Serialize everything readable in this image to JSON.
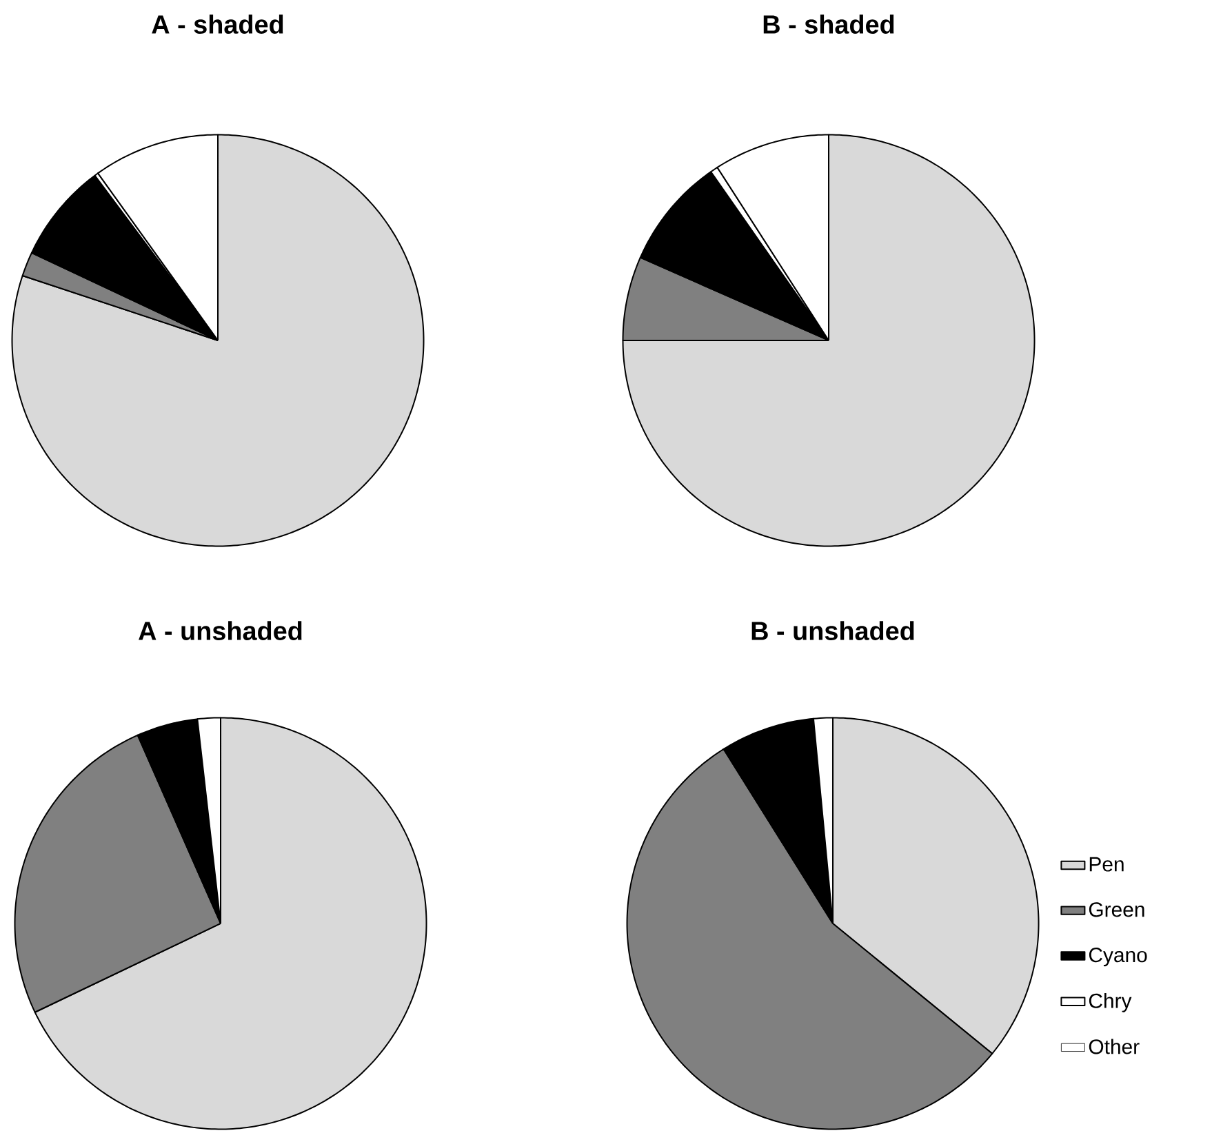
{
  "chart_data": [
    {
      "type": "pie",
      "title": "A - shaded",
      "values": [
        80.1,
        1.9,
        7.8,
        0.3,
        9.9
      ],
      "colors": [
        "#d9d9d9",
        "#808080",
        "#000000",
        "#ffffff",
        "#ffffff"
      ]
    },
    {
      "type": "pie",
      "title": "B - shaded",
      "values": [
        75.0,
        6.6,
        8.7,
        0.6,
        9.1
      ],
      "colors": [
        "#d9d9d9",
        "#808080",
        "#000000",
        "#ffffff",
        "#ffffff"
      ]
    },
    {
      "type": "pie",
      "title": "A - unshaded",
      "values": [
        67.9,
        25.5,
        4.8,
        1.8,
        0
      ],
      "colors": [
        "#d9d9d9",
        "#808080",
        "#000000",
        "#ffffff",
        "#ffffff"
      ]
    },
    {
      "type": "pie",
      "title": "B - unshaded",
      "categories": [
        "Pen",
        "Green",
        "Cyano",
        "Chry",
        "Other"
      ],
      "values": [
        35.9,
        55.2,
        7.4,
        1.5,
        0
      ],
      "colors": [
        "#d9d9d9",
        "#808080",
        "#000000",
        "#ffffff",
        "#ffffff"
      ],
      "legend": "right"
    }
  ]
}
